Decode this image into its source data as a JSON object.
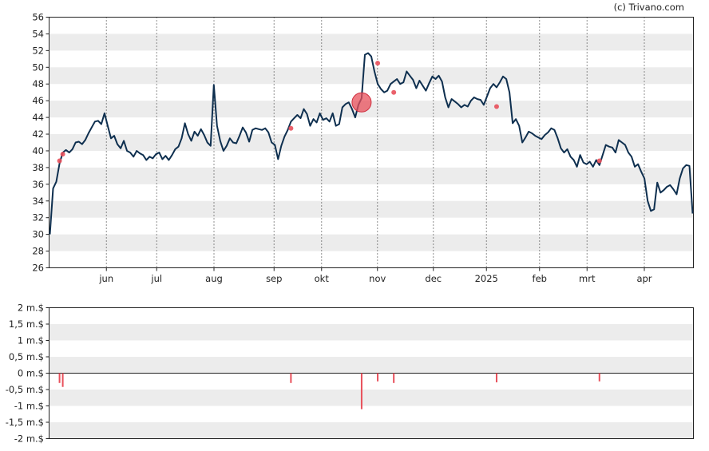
{
  "copyright": "(c) Trivano.com",
  "colors": {
    "price_line": "#0e2f4f",
    "marker": "#e8505b",
    "band": "#ececec",
    "background": "#ffffff",
    "grid_vertical": "#222222"
  },
  "chart_data": [
    {
      "type": "line",
      "name": "price",
      "ylim": [
        26,
        56
      ],
      "y_ticks": [
        "26",
        "28",
        "30",
        "32",
        "34",
        "36",
        "38",
        "40",
        "42",
        "44",
        "46",
        "48",
        "50",
        "52",
        "54",
        "56"
      ],
      "x_ticks": [
        "jun",
        "jul",
        "aug",
        "sep",
        "okt",
        "nov",
        "dec",
        "2025",
        "feb",
        "mrt",
        "apr"
      ],
      "grid": {
        "vertical": "dotted",
        "horizontal_bands": true
      },
      "x_range": [
        0,
        230
      ],
      "series": [
        {
          "values": [
            [
              0,
              30.0
            ],
            [
              1,
              35.5
            ],
            [
              2,
              36.3
            ],
            [
              3,
              38.5
            ],
            [
              4,
              39.8
            ],
            [
              5,
              40.1
            ],
            [
              6,
              39.8
            ],
            [
              7,
              40.2
            ],
            [
              8,
              41.0
            ],
            [
              9,
              41.1
            ],
            [
              10,
              40.8
            ],
            [
              11,
              41.3
            ],
            [
              12,
              42.1
            ],
            [
              13,
              42.8
            ],
            [
              14,
              43.5
            ],
            [
              15,
              43.6
            ],
            [
              16,
              43.2
            ],
            [
              17,
              44.5
            ],
            [
              18,
              43.0
            ],
            [
              19,
              41.5
            ],
            [
              20,
              41.8
            ],
            [
              21,
              40.8
            ],
            [
              22,
              40.3
            ],
            [
              23,
              41.2
            ],
            [
              24,
              40.0
            ],
            [
              25,
              39.8
            ],
            [
              26,
              39.3
            ],
            [
              27,
              40.0
            ],
            [
              28,
              39.7
            ],
            [
              29,
              39.5
            ],
            [
              30,
              38.9
            ],
            [
              31,
              39.3
            ],
            [
              32,
              39.1
            ],
            [
              33,
              39.6
            ],
            [
              34,
              39.8
            ],
            [
              35,
              39.0
            ],
            [
              36,
              39.4
            ],
            [
              37,
              38.9
            ],
            [
              38,
              39.5
            ],
            [
              39,
              40.2
            ],
            [
              40,
              40.5
            ],
            [
              41,
              41.5
            ],
            [
              42,
              43.3
            ],
            [
              43,
              42.0
            ],
            [
              44,
              41.2
            ],
            [
              45,
              42.3
            ],
            [
              46,
              41.8
            ],
            [
              47,
              42.6
            ],
            [
              48,
              41.9
            ],
            [
              49,
              41.0
            ],
            [
              50,
              40.6
            ],
            [
              51,
              47.9
            ],
            [
              52,
              43.0
            ],
            [
              53,
              41.2
            ],
            [
              54,
              40.0
            ],
            [
              55,
              40.6
            ],
            [
              56,
              41.5
            ],
            [
              57,
              41.0
            ],
            [
              58,
              40.9
            ],
            [
              59,
              41.8
            ],
            [
              60,
              42.8
            ],
            [
              61,
              42.2
            ],
            [
              62,
              41.1
            ],
            [
              63,
              42.5
            ],
            [
              64,
              42.7
            ],
            [
              65,
              42.6
            ],
            [
              66,
              42.5
            ],
            [
              67,
              42.7
            ],
            [
              68,
              42.2
            ],
            [
              69,
              41.0
            ],
            [
              70,
              40.7
            ],
            [
              71,
              39.0
            ],
            [
              72,
              40.6
            ],
            [
              73,
              41.7
            ],
            [
              74,
              42.5
            ],
            [
              75,
              43.5
            ],
            [
              76,
              43.9
            ],
            [
              77,
              44.3
            ],
            [
              78,
              43.9
            ],
            [
              79,
              45.0
            ],
            [
              80,
              44.4
            ],
            [
              81,
              43.0
            ],
            [
              82,
              43.8
            ],
            [
              83,
              43.4
            ],
            [
              84,
              44.5
            ],
            [
              85,
              43.7
            ],
            [
              86,
              43.9
            ],
            [
              87,
              43.5
            ],
            [
              88,
              44.5
            ],
            [
              89,
              43.0
            ],
            [
              90,
              43.2
            ],
            [
              91,
              45.2
            ],
            [
              92,
              45.6
            ],
            [
              93,
              45.8
            ],
            [
              94,
              45.0
            ],
            [
              95,
              44.0
            ],
            [
              96,
              45.5
            ],
            [
              97,
              46.3
            ],
            [
              98,
              51.5
            ],
            [
              99,
              51.7
            ],
            [
              100,
              51.3
            ],
            [
              101,
              49.5
            ],
            [
              102,
              48.0
            ],
            [
              103,
              47.4
            ],
            [
              104,
              47.0
            ],
            [
              105,
              47.2
            ],
            [
              106,
              48.0
            ],
            [
              107,
              48.3
            ],
            [
              108,
              48.6
            ],
            [
              109,
              48.0
            ],
            [
              110,
              48.2
            ],
            [
              111,
              49.5
            ],
            [
              112,
              49.0
            ],
            [
              113,
              48.5
            ],
            [
              114,
              47.5
            ],
            [
              115,
              48.4
            ],
            [
              116,
              47.8
            ],
            [
              117,
              47.2
            ],
            [
              118,
              48.1
            ],
            [
              119,
              48.9
            ],
            [
              120,
              48.6
            ],
            [
              121,
              49.0
            ],
            [
              122,
              48.3
            ],
            [
              123,
              46.4
            ],
            [
              124,
              45.2
            ],
            [
              125,
              46.2
            ],
            [
              126,
              45.9
            ],
            [
              127,
              45.6
            ],
            [
              128,
              45.2
            ],
            [
              129,
              45.5
            ],
            [
              130,
              45.3
            ],
            [
              131,
              46.0
            ],
            [
              132,
              46.4
            ],
            [
              133,
              46.2
            ],
            [
              134,
              46.1
            ],
            [
              135,
              45.5
            ],
            [
              136,
              46.5
            ],
            [
              137,
              47.5
            ],
            [
              138,
              48.0
            ],
            [
              139,
              47.6
            ],
            [
              140,
              48.2
            ],
            [
              141,
              48.9
            ],
            [
              142,
              48.6
            ],
            [
              143,
              47.0
            ],
            [
              144,
              43.3
            ],
            [
              145,
              43.8
            ],
            [
              146,
              43.0
            ],
            [
              147,
              41.0
            ],
            [
              148,
              41.6
            ],
            [
              149,
              42.3
            ],
            [
              150,
              42.1
            ],
            [
              151,
              41.8
            ],
            [
              152,
              41.6
            ],
            [
              153,
              41.4
            ],
            [
              154,
              41.9
            ],
            [
              155,
              42.2
            ],
            [
              156,
              42.7
            ],
            [
              157,
              42.5
            ],
            [
              158,
              41.5
            ],
            [
              159,
              40.3
            ],
            [
              160,
              39.8
            ],
            [
              161,
              40.2
            ],
            [
              162,
              39.3
            ],
            [
              163,
              38.9
            ],
            [
              164,
              38.1
            ],
            [
              165,
              39.5
            ],
            [
              166,
              38.6
            ],
            [
              167,
              38.4
            ],
            [
              168,
              38.7
            ],
            [
              169,
              38.1
            ],
            [
              170,
              38.9
            ],
            [
              171,
              38.3
            ],
            [
              172,
              39.5
            ],
            [
              173,
              40.7
            ],
            [
              174,
              40.5
            ],
            [
              175,
              40.4
            ],
            [
              176,
              39.8
            ],
            [
              177,
              41.3
            ],
            [
              178,
              41.0
            ],
            [
              179,
              40.7
            ],
            [
              180,
              39.8
            ],
            [
              181,
              39.3
            ],
            [
              182,
              38.1
            ],
            [
              183,
              38.4
            ],
            [
              184,
              37.5
            ],
            [
              185,
              36.7
            ],
            [
              186,
              34.0
            ],
            [
              187,
              32.8
            ],
            [
              188,
              33.0
            ],
            [
              189,
              36.2
            ],
            [
              190,
              35.0
            ],
            [
              191,
              35.3
            ],
            [
              192,
              35.7
            ],
            [
              193,
              35.9
            ],
            [
              194,
              35.4
            ],
            [
              195,
              34.8
            ],
            [
              196,
              36.7
            ],
            [
              197,
              37.9
            ],
            [
              198,
              38.3
            ],
            [
              199,
              38.2
            ],
            [
              200,
              32.5
            ]
          ],
          "markers": [
            {
              "x": 3,
              "y": 38.8,
              "size": "small"
            },
            {
              "x": 4,
              "y": 39.6,
              "size": "small"
            },
            {
              "x": 75,
              "y": 42.7,
              "size": "small"
            },
            {
              "x": 97,
              "y": 45.8,
              "size": "large"
            },
            {
              "x": 102,
              "y": 50.5,
              "size": "small"
            },
            {
              "x": 107,
              "y": 47.0,
              "size": "small"
            },
            {
              "x": 139,
              "y": 45.3,
              "size": "small"
            },
            {
              "x": 171,
              "y": 38.8,
              "size": "small"
            }
          ]
        }
      ]
    },
    {
      "type": "bar",
      "name": "volume",
      "ylim": [
        -2,
        2
      ],
      "y_ticks": [
        "2 m.$",
        "1,5 m.$",
        "1 m.$",
        "0,5 m.$",
        "0 m.$",
        "-0,5 m.$",
        "-1 m.$",
        "-1,5 m.$",
        "-2 m.$"
      ],
      "bars": [
        {
          "x": 3,
          "value": -0.3
        },
        {
          "x": 4,
          "value": -0.42
        },
        {
          "x": 75,
          "value": -0.3
        },
        {
          "x": 97,
          "value": -1.1
        },
        {
          "x": 102,
          "value": -0.25
        },
        {
          "x": 107,
          "value": -0.3
        },
        {
          "x": 139,
          "value": -0.28
        },
        {
          "x": 171,
          "value": -0.25
        }
      ]
    }
  ]
}
